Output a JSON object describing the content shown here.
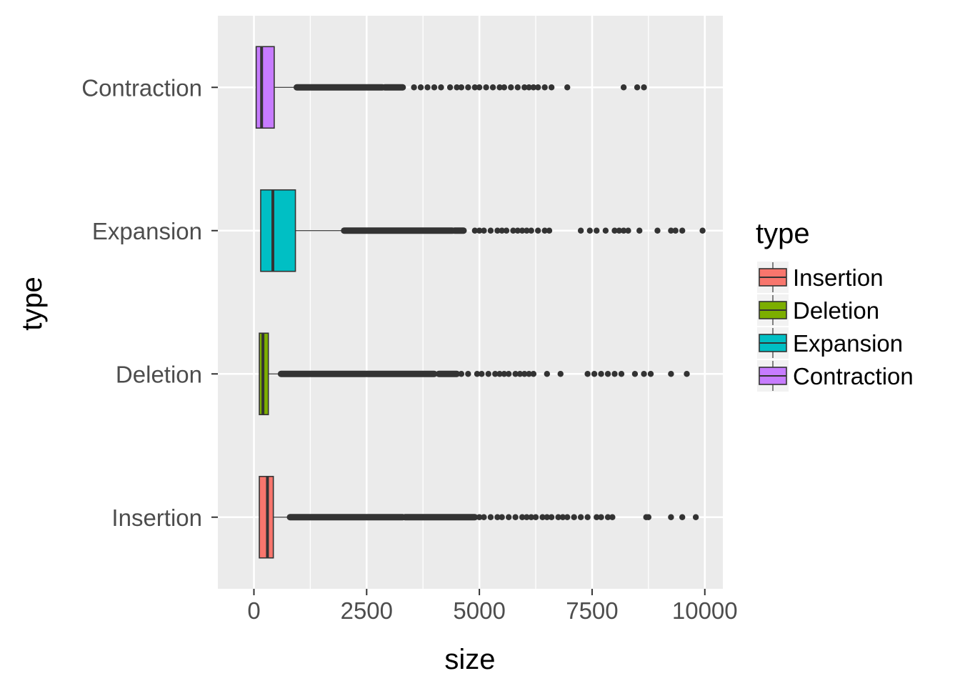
{
  "chart_data": {
    "type": "boxplot",
    "orientation": "horizontal",
    "xlabel": "size",
    "ylabel": "type",
    "xlim": [
      -800,
      10400
    ],
    "x_ticks": [
      0,
      2500,
      5000,
      7500,
      10000
    ],
    "x_tick_labels": [
      "0",
      "2500",
      "5000",
      "7500",
      "10000"
    ],
    "grid": true,
    "categories": [
      "Insertion",
      "Deletion",
      "Expansion",
      "Contraction"
    ],
    "legend": {
      "title": "type",
      "position": "right",
      "entries": [
        "Insertion",
        "Deletion",
        "Expansion",
        "Contraction"
      ]
    },
    "series": [
      {
        "name": "Insertion",
        "color": "#F8766D",
        "whisker_low": 120,
        "q1": 120,
        "median": 300,
        "q3": 430,
        "whisker_high": 800,
        "outlier_bands": [
          [
            800,
            3300
          ],
          [
            3350,
            4900
          ]
        ],
        "outliers": [
          5000,
          5100,
          5250,
          5400,
          5500,
          5650,
          5800,
          5950,
          6050,
          6150,
          6250,
          6400,
          6500,
          6600,
          6750,
          6850,
          6950,
          7100,
          7250,
          7400,
          7600,
          7700,
          7850,
          7950,
          8700,
          8750,
          9250,
          9500,
          9800
        ]
      },
      {
        "name": "Deletion",
        "color": "#7CAE00",
        "whisker_low": 120,
        "q1": 120,
        "median": 200,
        "q3": 320,
        "whisker_high": 600,
        "outlier_bands": [
          [
            600,
            4000
          ],
          [
            4100,
            4500
          ]
        ],
        "outliers": [
          4600,
          4750,
          4950,
          5050,
          5200,
          5350,
          5450,
          5550,
          5650,
          5800,
          5900,
          6000,
          6100,
          6200,
          6500,
          6800,
          7400,
          7550,
          7700,
          7850,
          8000,
          8150,
          8450,
          8650,
          8800,
          9250,
          9600
        ]
      },
      {
        "name": "Expansion",
        "color": "#00BFC4",
        "whisker_low": 150,
        "q1": 150,
        "median": 420,
        "q3": 920,
        "whisker_high": 2000,
        "outlier_bands": [
          [
            2000,
            4400
          ],
          [
            4450,
            4650
          ]
        ],
        "outliers": [
          4900,
          5000,
          5100,
          5250,
          5400,
          5500,
          5600,
          5750,
          5850,
          5950,
          6050,
          6150,
          6300,
          6450,
          6550,
          7250,
          7450,
          7600,
          7800,
          8000,
          8100,
          8200,
          8300,
          8550,
          8950,
          9250,
          9350,
          9500,
          9950
        ]
      },
      {
        "name": "Contraction",
        "color": "#C77CFF",
        "whisker_low": 50,
        "q1": 50,
        "median": 170,
        "q3": 450,
        "whisker_high": 950,
        "outlier_bands": [
          [
            950,
            2850
          ],
          [
            2900,
            3300
          ]
        ],
        "outliers": [
          3550,
          3700,
          3850,
          4000,
          4150,
          4350,
          4500,
          4600,
          4750,
          4900,
          5000,
          5150,
          5300,
          5450,
          5550,
          5700,
          5850,
          6000,
          6100,
          6200,
          6300,
          6450,
          6600,
          6950,
          8200,
          8500,
          8650
        ]
      }
    ]
  }
}
